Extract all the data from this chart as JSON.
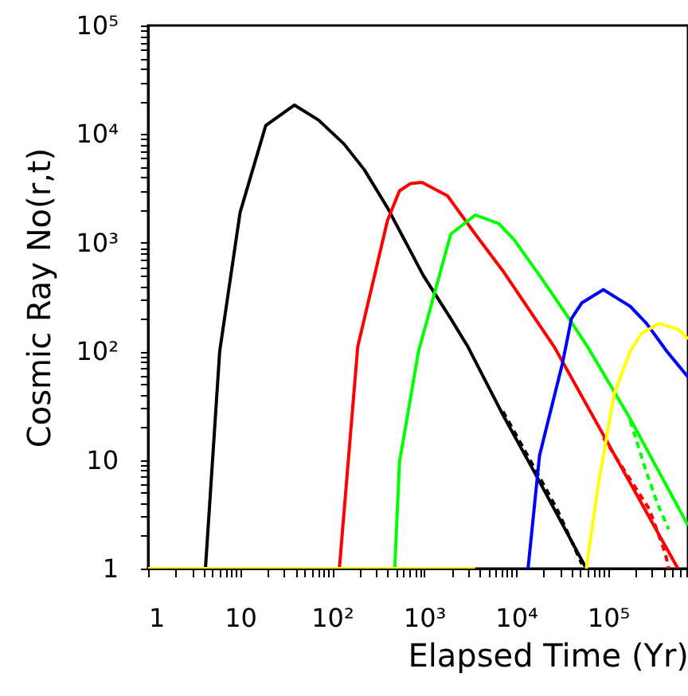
{
  "chart_data": {
    "type": "line",
    "xlabel": "Elapsed Time (Yr)",
    "ylabel": "Cosmic Ray No(r,t)",
    "log": "xy",
    "grid": false,
    "line_style": "solid",
    "xlim": [
      1,
      740000
    ],
    "ylim": [
      1,
      100000
    ],
    "xticks": [
      1,
      {
        "value": 2,
        "label": null
      },
      {
        "value": 3,
        "label": null
      },
      {
        "value": 4,
        "label": null
      },
      {
        "value": 5,
        "label": null
      },
      {
        "value": 6,
        "label": null
      },
      {
        "value": 7,
        "label": null
      },
      {
        "value": 8,
        "label": null
      },
      {
        "value": 9,
        "label": null
      },
      10,
      {
        "value": 20,
        "label": null
      },
      {
        "value": 30,
        "label": null
      },
      {
        "value": 40,
        "label": null
      },
      {
        "value": 50,
        "label": null
      },
      {
        "value": 60,
        "label": null
      },
      {
        "value": 70,
        "label": null
      },
      {
        "value": 80,
        "label": null
      },
      {
        "value": 90,
        "label": null
      },
      {
        "value": 100,
        "label": "10²"
      },
      {
        "value": 200,
        "label": null
      },
      {
        "value": 300,
        "label": null
      },
      {
        "value": 400,
        "label": null
      },
      {
        "value": 500,
        "label": null
      },
      {
        "value": 600,
        "label": null
      },
      {
        "value": 700,
        "label": null
      },
      {
        "value": 800,
        "label": null
      },
      {
        "value": 900,
        "label": null
      },
      {
        "value": 1000,
        "label": "10³"
      },
      {
        "value": 2000,
        "label": null
      },
      {
        "value": 3000,
        "label": null
      },
      {
        "value": 4000,
        "label": null
      },
      {
        "value": 5000,
        "label": null
      },
      {
        "value": 6000,
        "label": null
      },
      {
        "value": 7000,
        "label": null
      },
      {
        "value": 8000,
        "label": null
      },
      {
        "value": 9000,
        "label": null
      },
      {
        "value": 10000,
        "label": "10⁴"
      },
      {
        "value": 20000,
        "label": null
      },
      {
        "value": 30000,
        "label": null
      },
      {
        "value": 40000,
        "label": null
      },
      {
        "value": 50000,
        "label": null
      },
      {
        "value": 60000,
        "label": null
      },
      {
        "value": 70000,
        "label": null
      },
      {
        "value": 80000,
        "label": null
      },
      {
        "value": 90000,
        "label": null
      },
      {
        "value": 100000,
        "label": "10⁵"
      },
      {
        "value": 200000,
        "label": null
      },
      {
        "value": 300000,
        "label": null
      },
      {
        "value": 400000,
        "label": null
      },
      {
        "value": 500000,
        "label": null
      },
      {
        "value": 600000,
        "label": null
      },
      {
        "value": 700000,
        "label": null
      }
    ],
    "yticks": [
      1,
      {
        "value": 2,
        "label": null
      },
      {
        "value": 3,
        "label": null
      },
      {
        "value": 4,
        "label": null
      },
      {
        "value": 5,
        "label": null
      },
      {
        "value": 6,
        "label": null
      },
      {
        "value": 7,
        "label": null
      },
      {
        "value": 8,
        "label": null
      },
      {
        "value": 9,
        "label": null
      },
      10,
      {
        "value": 20,
        "label": null
      },
      {
        "value": 30,
        "label": null
      },
      {
        "value": 40,
        "label": null
      },
      {
        "value": 50,
        "label": null
      },
      {
        "value": 60,
        "label": null
      },
      {
        "value": 70,
        "label": null
      },
      {
        "value": 80,
        "label": null
      },
      {
        "value": 90,
        "label": null
      },
      {
        "value": 100,
        "label": "10²"
      },
      {
        "value": 200,
        "label": null
      },
      {
        "value": 300,
        "label": null
      },
      {
        "value": 400,
        "label": null
      },
      {
        "value": 500,
        "label": null
      },
      {
        "value": 600,
        "label": null
      },
      {
        "value": 700,
        "label": null
      },
      {
        "value": 800,
        "label": null
      },
      {
        "value": 900,
        "label": null
      },
      {
        "value": 1000,
        "label": "10³"
      },
      {
        "value": 2000,
        "label": null
      },
      {
        "value": 3000,
        "label": null
      },
      {
        "value": 4000,
        "label": null
      },
      {
        "value": 5000,
        "label": null
      },
      {
        "value": 6000,
        "label": null
      },
      {
        "value": 7000,
        "label": null
      },
      {
        "value": 8000,
        "label": null
      },
      {
        "value": 9000,
        "label": null
      },
      {
        "value": 10000,
        "label": "10⁴"
      },
      {
        "value": 20000,
        "label": null
      },
      {
        "value": 30000,
        "label": null
      },
      {
        "value": 40000,
        "label": null
      },
      {
        "value": 50000,
        "label": null
      },
      {
        "value": 60000,
        "label": null
      },
      {
        "value": 70000,
        "label": null
      },
      {
        "value": 80000,
        "label": null
      },
      {
        "value": 90000,
        "label": null
      },
      {
        "value": 100000,
        "label": "10⁵"
      }
    ],
    "series": [
      {
        "color": "#000000",
        "x": [
          4.2,
          6,
          10,
          19,
          39,
          71,
          135,
          224,
          400,
          980,
          1950,
          3000,
          7200,
          16000,
          58000
        ],
        "values": [
          1,
          100,
          1900,
          12000,
          18500,
          13500,
          8100,
          4700,
          2100,
          500,
          200,
          110,
          26,
          7.6,
          1
        ]
      },
      {
        "color": "#000000",
        "line_style": "dashed",
        "x": [
          7200,
          16000,
          28000,
          52000
        ],
        "values": [
          28,
          8.3,
          3.5,
          1.1
        ]
      },
      {
        "color": "#ff0000",
        "x": [
          120,
          190,
          400,
          540,
          710,
          950,
          1800,
          3600,
          7200,
          26000,
          89000,
          575000
        ],
        "values": [
          1,
          110,
          1600,
          3000,
          3500,
          3600,
          2700,
          1200,
          550,
          110,
          17,
          1
        ]
      },
      {
        "color": "#ff0000",
        "line_style": "dashed",
        "x": [
          89000,
          282000,
          417000,
          457000
        ],
        "values": [
          16,
          3.5,
          1.4,
          1
        ]
      },
      {
        "color": "#00ff00",
        "x": [
          480,
          540,
          870,
          1950,
          3600,
          6500,
          9500,
          18000,
          35000,
          60000,
          174000,
          740000
        ],
        "values": [
          1,
          9.5,
          100,
          1200,
          1800,
          1500,
          1070,
          500,
          220,
          110,
          24,
          2.5
        ]
      },
      {
        "color": "#00ff00",
        "line_style": "dashed",
        "x": [
          174000,
          263000,
          347000,
          457000
        ],
        "values": [
          23,
          7.6,
          3.9,
          2.3
        ]
      },
      {
        "color": "#0000ff",
        "x": [
          13500,
          18000,
          32000,
          40000,
          52000,
          89000,
          174000,
          263000,
          436000,
          740000
        ],
        "values": [
          1,
          11,
          78,
          200,
          280,
          370,
          260,
          180,
          100,
          58
        ]
      },
      {
        "color": "#ffff00",
        "x": [
          1,
          3600
        ],
        "values": [
          1,
          1
        ]
      },
      {
        "color": "#ffff00",
        "x": [
          58000,
          79000,
          117000,
          174000,
          229000,
          355000,
          575000,
          740000
        ],
        "values": [
          1,
          6.2,
          41,
          100,
          145,
          180,
          160,
          130
        ]
      }
    ]
  }
}
